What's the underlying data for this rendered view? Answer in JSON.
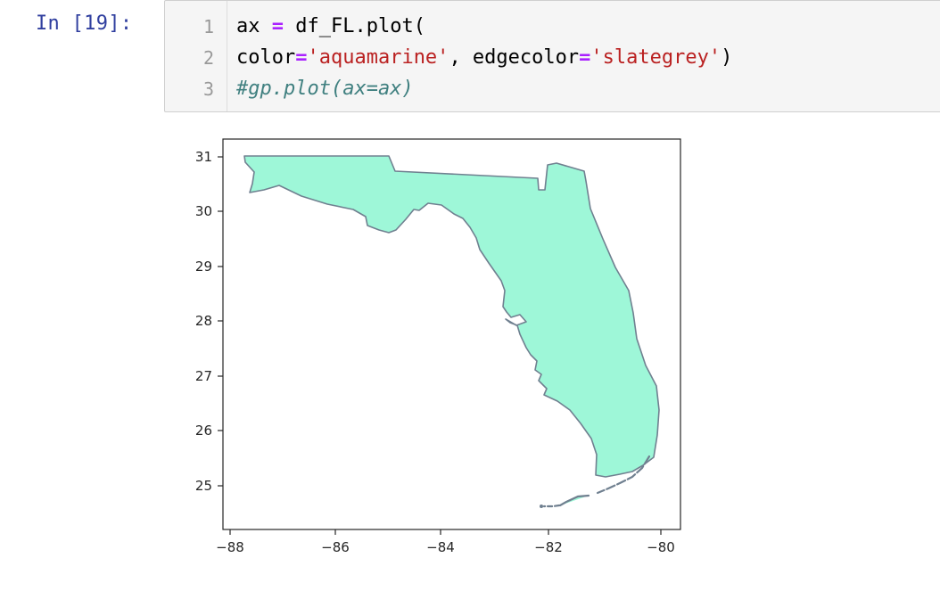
{
  "prompt": "In [19]:",
  "code": {
    "line_numbers": [
      "1",
      "2",
      "3"
    ],
    "lines": [
      [
        {
          "t": "plain",
          "v": "ax "
        },
        {
          "t": "op",
          "v": "="
        },
        {
          "t": "plain",
          "v": " df_FL.plot("
        }
      ],
      [
        {
          "t": "plain",
          "v": "color"
        },
        {
          "t": "op",
          "v": "="
        },
        {
          "t": "str",
          "v": "'aquamarine'"
        },
        {
          "t": "plain",
          "v": ", edgecolor"
        },
        {
          "t": "op",
          "v": "="
        },
        {
          "t": "str",
          "v": "'slategrey'"
        },
        {
          "t": "plain",
          "v": ")"
        }
      ],
      [
        {
          "t": "cmt",
          "v": "#gp.plot(ax=ax)"
        }
      ]
    ]
  },
  "output": {
    "fill_color": "#9EF7D8",
    "edge_color": "#708090",
    "xlim": [
      -88,
      -80
    ],
    "ylim": [
      24.3,
      31.3
    ],
    "x_ticks": [
      "−88",
      "−86",
      "−84",
      "−82",
      "−80"
    ],
    "y_ticks": [
      "31",
      "30",
      "29",
      "28",
      "27",
      "26",
      "25"
    ]
  }
}
